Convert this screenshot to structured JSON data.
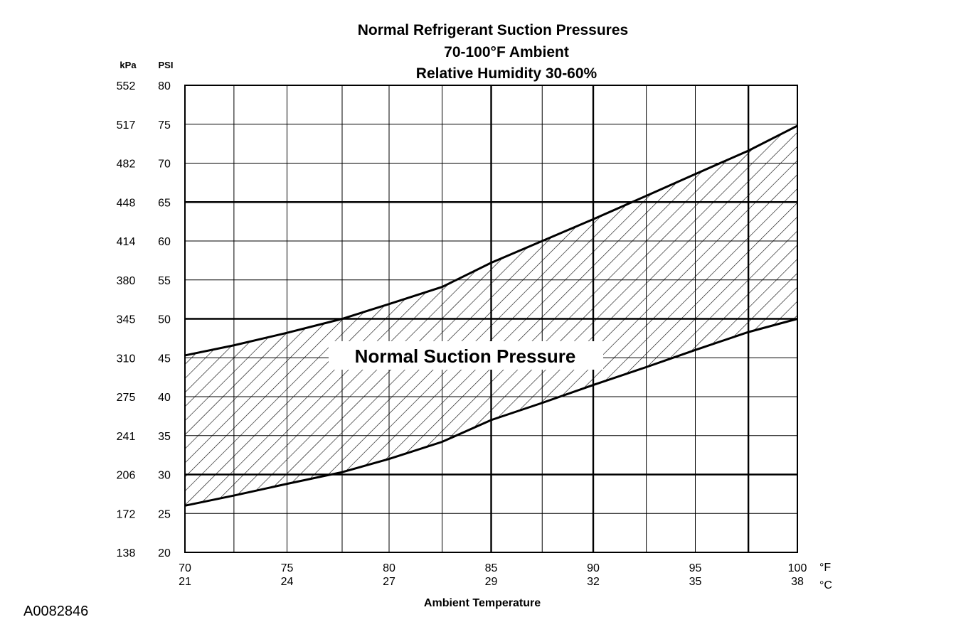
{
  "chart_data": {
    "type": "area",
    "title": [
      "Normal Refrigerant Suction Pressures",
      "70-100°F Ambient",
      "Relative Humidity 30-60%"
    ],
    "xlabel": "Ambient Temperature",
    "x_unit_primary": "°F",
    "x_unit_secondary": "°C",
    "y_unit_primary": "PSI",
    "y_unit_secondary": "kPa",
    "xlim": [
      70,
      100
    ],
    "ylim": [
      20,
      80
    ],
    "x_ticks": [
      {
        "f": "70",
        "c": "21",
        "value": 70
      },
      {
        "f": "75",
        "c": "24",
        "value": 75
      },
      {
        "f": "80",
        "c": "27",
        "value": 80
      },
      {
        "f": "85",
        "c": "29",
        "value": 85
      },
      {
        "f": "90",
        "c": "32",
        "value": 90
      },
      {
        "f": "95",
        "c": "35",
        "value": 95
      },
      {
        "f": "100",
        "c": "38",
        "value": 100
      }
    ],
    "y_ticks": [
      {
        "psi": "80",
        "kpa": "552",
        "value": 80
      },
      {
        "psi": "75",
        "kpa": "517",
        "value": 75
      },
      {
        "psi": "70",
        "kpa": "482",
        "value": 70
      },
      {
        "psi": "65",
        "kpa": "448",
        "value": 65
      },
      {
        "psi": "60",
        "kpa": "414",
        "value": 60
      },
      {
        "psi": "55",
        "kpa": "380",
        "value": 55
      },
      {
        "psi": "50",
        "kpa": "345",
        "value": 50
      },
      {
        "psi": "45",
        "kpa": "310",
        "value": 45
      },
      {
        "psi": "40",
        "kpa": "275",
        "value": 40
      },
      {
        "psi": "35",
        "kpa": "241",
        "value": 35
      },
      {
        "psi": "30",
        "kpa": "206",
        "value": 30
      },
      {
        "psi": "25",
        "kpa": "172",
        "value": 25
      },
      {
        "psi": "20",
        "kpa": "138",
        "value": 20
      }
    ],
    "x_grid": [
      70,
      72.4,
      75,
      77.7,
      80,
      82.6,
      85,
      87.5,
      90,
      92.6,
      95,
      97.6,
      100
    ],
    "x_grid_heavy": [
      85,
      90,
      97.6
    ],
    "y_grid_heavy": [
      65,
      50,
      30
    ],
    "band_label": "Normal Suction Pressure",
    "band": {
      "x": [
        70,
        72.4,
        75,
        77.7,
        80,
        82.6,
        85,
        87.5,
        90,
        92.6,
        95,
        97.6,
        100
      ],
      "upper": [
        45.3,
        46.6,
        48.2,
        50.0,
        51.9,
        54.1,
        57.2,
        60.0,
        62.8,
        65.8,
        68.6,
        71.6,
        74.8
      ],
      "lower": [
        26.0,
        27.3,
        28.8,
        30.3,
        32.0,
        34.2,
        37.0,
        39.2,
        41.5,
        43.8,
        46.0,
        48.3,
        50.0
      ]
    }
  },
  "figure_id": "A0082846"
}
